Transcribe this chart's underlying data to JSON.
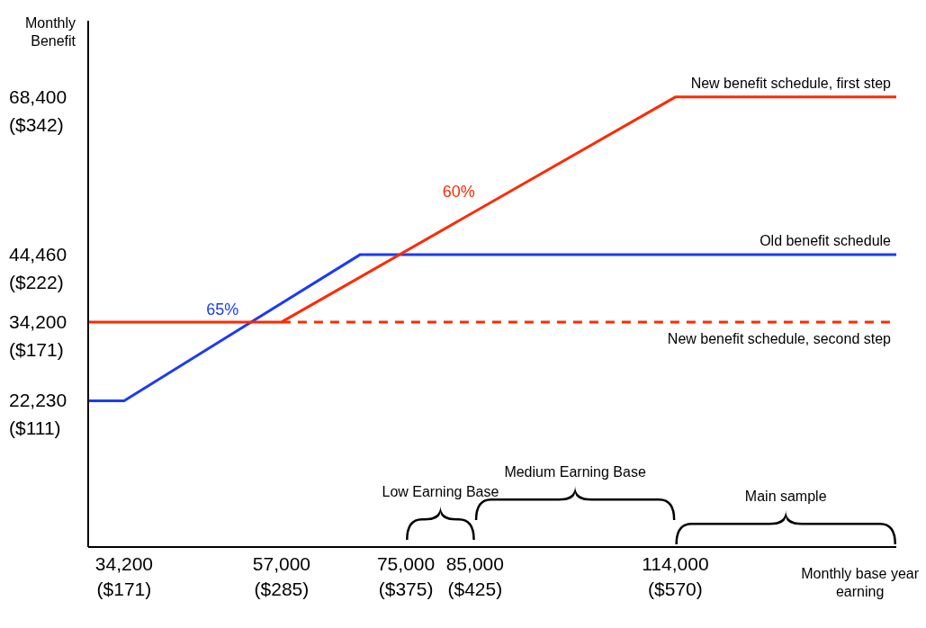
{
  "chart_data": {
    "type": "line",
    "xlabel": "Monthly base year\nearning",
    "ylabel": "Monthly\nBenefit",
    "xlim": [
      29000,
      146000
    ],
    "ylim": [
      0,
      80000
    ],
    "xticks": [
      {
        "value": 34200,
        "label": "34,200"
      },
      {
        "value": 57000,
        "label": "57,000"
      },
      {
        "value": 75000,
        "label": "75,000"
      },
      {
        "value": 85000,
        "label": "85,000"
      },
      {
        "value": 114000,
        "label": "114,000"
      }
    ],
    "yticks": [
      {
        "value": 22230,
        "label": "22,230"
      },
      {
        "value": 34200,
        "label": "34,200"
      },
      {
        "value": 44460,
        "label": "44,460"
      },
      {
        "value": 68400,
        "label": "68,400"
      }
    ],
    "x2lim": [
      145,
      730
    ],
    "x2ticks": [
      {
        "value": 171,
        "label": "($171)"
      },
      {
        "value": 285,
        "label": "($285)"
      },
      {
        "value": 375,
        "label": "($375)"
      },
      {
        "value": 425,
        "label": "($425)"
      },
      {
        "value": 570,
        "label": "($570)"
      }
    ],
    "y2lim": [
      21,
      421
    ],
    "y2ticks": [
      {
        "value": 111,
        "label": "($111)"
      },
      {
        "value": 171,
        "label": "($171)"
      },
      {
        "value": 222,
        "label": "($222)"
      },
      {
        "value": 342,
        "label": "($342)"
      }
    ],
    "series": [
      {
        "name": "Old benefit schedule",
        "color": "#1a3cf5",
        "x": [
          29000,
          34200,
          68400,
          146000
        ],
        "values": [
          22230,
          22230,
          44460,
          44460
        ]
      },
      {
        "name": "New benefit schedule, first step",
        "color": "#ff2a00",
        "x": [
          29000,
          57000,
          114000,
          146000
        ],
        "values": [
          34200,
          34200,
          68400,
          68400
        ]
      },
      {
        "name": "New benefit schedule, second step",
        "color": "#ff2a00",
        "line_style": "dashed",
        "x": [
          57000,
          146000
        ],
        "values": [
          34200,
          34200
        ]
      }
    ],
    "annotations": [
      "65%",
      "60%",
      "Low Earning Base",
      "Medium Earning Base",
      "Main sample"
    ],
    "line_style": "solid",
    "marker": "none",
    "grid": false,
    "legend": false
  }
}
